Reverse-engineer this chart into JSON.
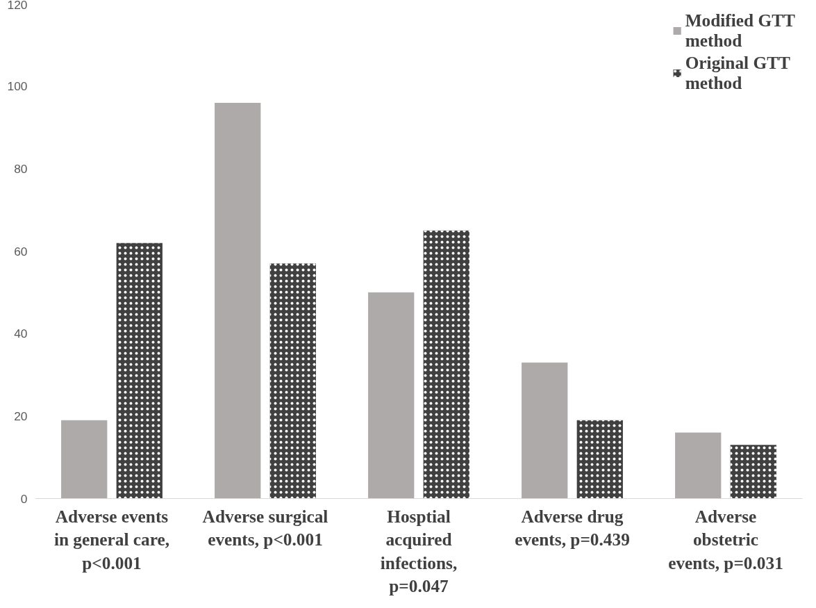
{
  "chart_data": {
    "type": "bar",
    "categories": [
      "Adverse events in general care, p<0.001",
      "Adverse surgical events, p<0.001",
      "Hosptial acquired infections, p=0.047",
      "Adverse drug events, p=0.439",
      "Adverse obstetric events, p=0.031"
    ],
    "series": [
      {
        "name": "Modified GTT method",
        "color": "#aeaaaa",
        "values": [
          19,
          96,
          50,
          33,
          16
        ]
      },
      {
        "name": "Original GTT method",
        "color": "#404040",
        "values": [
          62,
          57,
          65,
          19,
          13
        ]
      }
    ],
    "ylim": [
      0,
      120
    ],
    "yticks": [
      0,
      20,
      40,
      60,
      80,
      100,
      120
    ],
    "grid": false,
    "legend": "top right"
  }
}
